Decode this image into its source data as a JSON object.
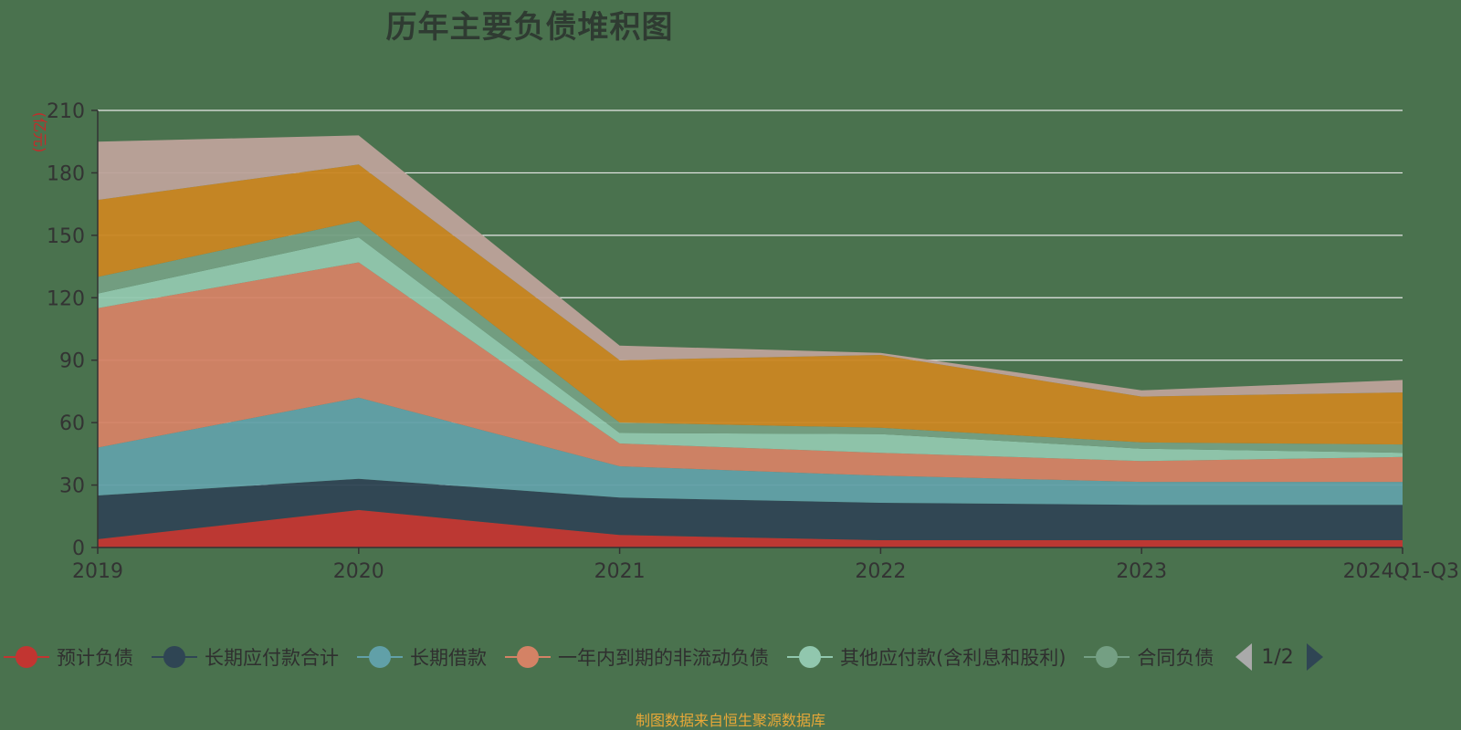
{
  "chart_data": {
    "type": "area",
    "stacked": true,
    "title": "历年主要负债堆积图",
    "ylabel": "(亿元)",
    "xlabel": "",
    "ylim": [
      0,
      210
    ],
    "yticks": [
      0,
      30,
      60,
      90,
      120,
      150,
      180,
      210
    ],
    "grid": true,
    "legend_position": "bottom",
    "categories": [
      "2019",
      "2020",
      "2021",
      "2022",
      "2023",
      "2024Q1-Q3"
    ],
    "series": [
      {
        "name": "预计负债",
        "color": "#c23531",
        "values": [
          4,
          18,
          6,
          3.5,
          3.5,
          3.5
        ]
      },
      {
        "name": "长期应付款合计",
        "color": "#2f4554",
        "values": [
          21,
          15,
          18,
          18,
          17,
          17
        ]
      },
      {
        "name": "长期借款",
        "color": "#61a0a8",
        "values": [
          23,
          39,
          15,
          13,
          11,
          11
        ]
      },
      {
        "name": "一年内到期的非流动负债",
        "color": "#d48265",
        "values": [
          67,
          65,
          11,
          11,
          10,
          12
        ]
      },
      {
        "name": "其他应付款(含利息和股利)",
        "color": "#91c7ae",
        "values": [
          7,
          12,
          5,
          9,
          6,
          2
        ]
      },
      {
        "name": "合同负债",
        "color": "#749f83",
        "values": [
          8,
          8,
          5,
          3,
          3,
          4
        ]
      },
      {
        "name": "",
        "color": "#ca8622",
        "values": [
          37,
          27,
          30,
          35,
          22,
          25
        ]
      },
      {
        "name": "",
        "color": "#bda29a",
        "values": [
          28,
          14,
          7,
          1,
          3,
          6
        ]
      }
    ]
  },
  "legend": {
    "items": [
      {
        "label": "预计负债",
        "color": "#c23531"
      },
      {
        "label": "长期应付款合计",
        "color": "#2f4554"
      },
      {
        "label": "长期借款",
        "color": "#61a0a8"
      },
      {
        "label": "一年内到期的非流动负债",
        "color": "#d48265"
      },
      {
        "label": "其他应付款(含利息和股利)",
        "color": "#91c7ae"
      },
      {
        "label": "合同负债",
        "color": "#749f83"
      }
    ],
    "page": "1/2"
  },
  "source_note": "制图数据来自恒生聚源数据库"
}
